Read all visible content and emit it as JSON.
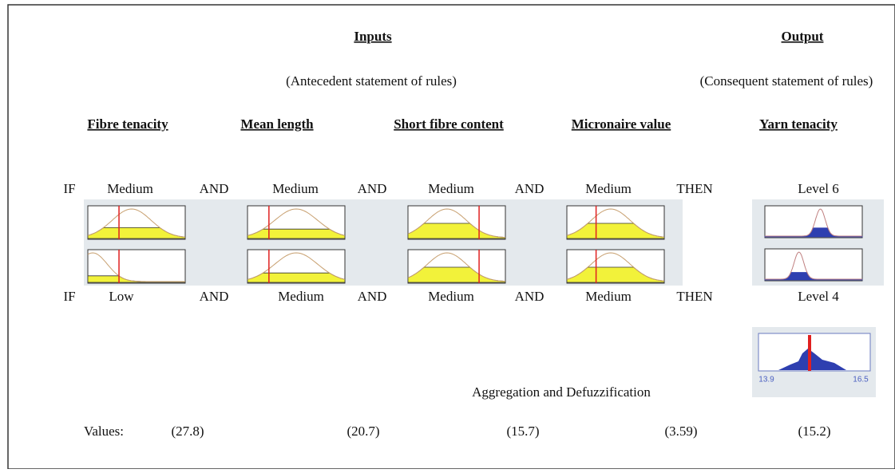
{
  "header": {
    "inputs": "Inputs",
    "output": "Output",
    "antecedent": "(Antecedent statement of rules)",
    "consequent": "(Consequent statement of rules)"
  },
  "columns": [
    "Fibre tenacity",
    "Mean length",
    "Short fibre content",
    "Micronaire value",
    "Yarn tenacity"
  ],
  "rules": [
    {
      "if": "IF",
      "antecedents": [
        "Medium",
        "Medium",
        "Medium",
        "Medium"
      ],
      "connectives": [
        "AND",
        "AND",
        "AND"
      ],
      "then": "THEN",
      "consequent": "Level 6"
    },
    {
      "if": "IF",
      "antecedents": [
        "Low",
        "Medium",
        "Medium",
        "Medium"
      ],
      "connectives": [
        "AND",
        "AND",
        "AND"
      ],
      "then": "THEN",
      "consequent": "Level 4"
    }
  ],
  "output_axis": {
    "min_label": "13.9",
    "max_label": "16.5"
  },
  "aggregation": "Aggregation and Defuzzification",
  "values": {
    "label": "Values:",
    "items": [
      "(27.8)",
      "(20.7)",
      "(15.7)",
      "(3.59)",
      "(15.2)"
    ]
  }
}
